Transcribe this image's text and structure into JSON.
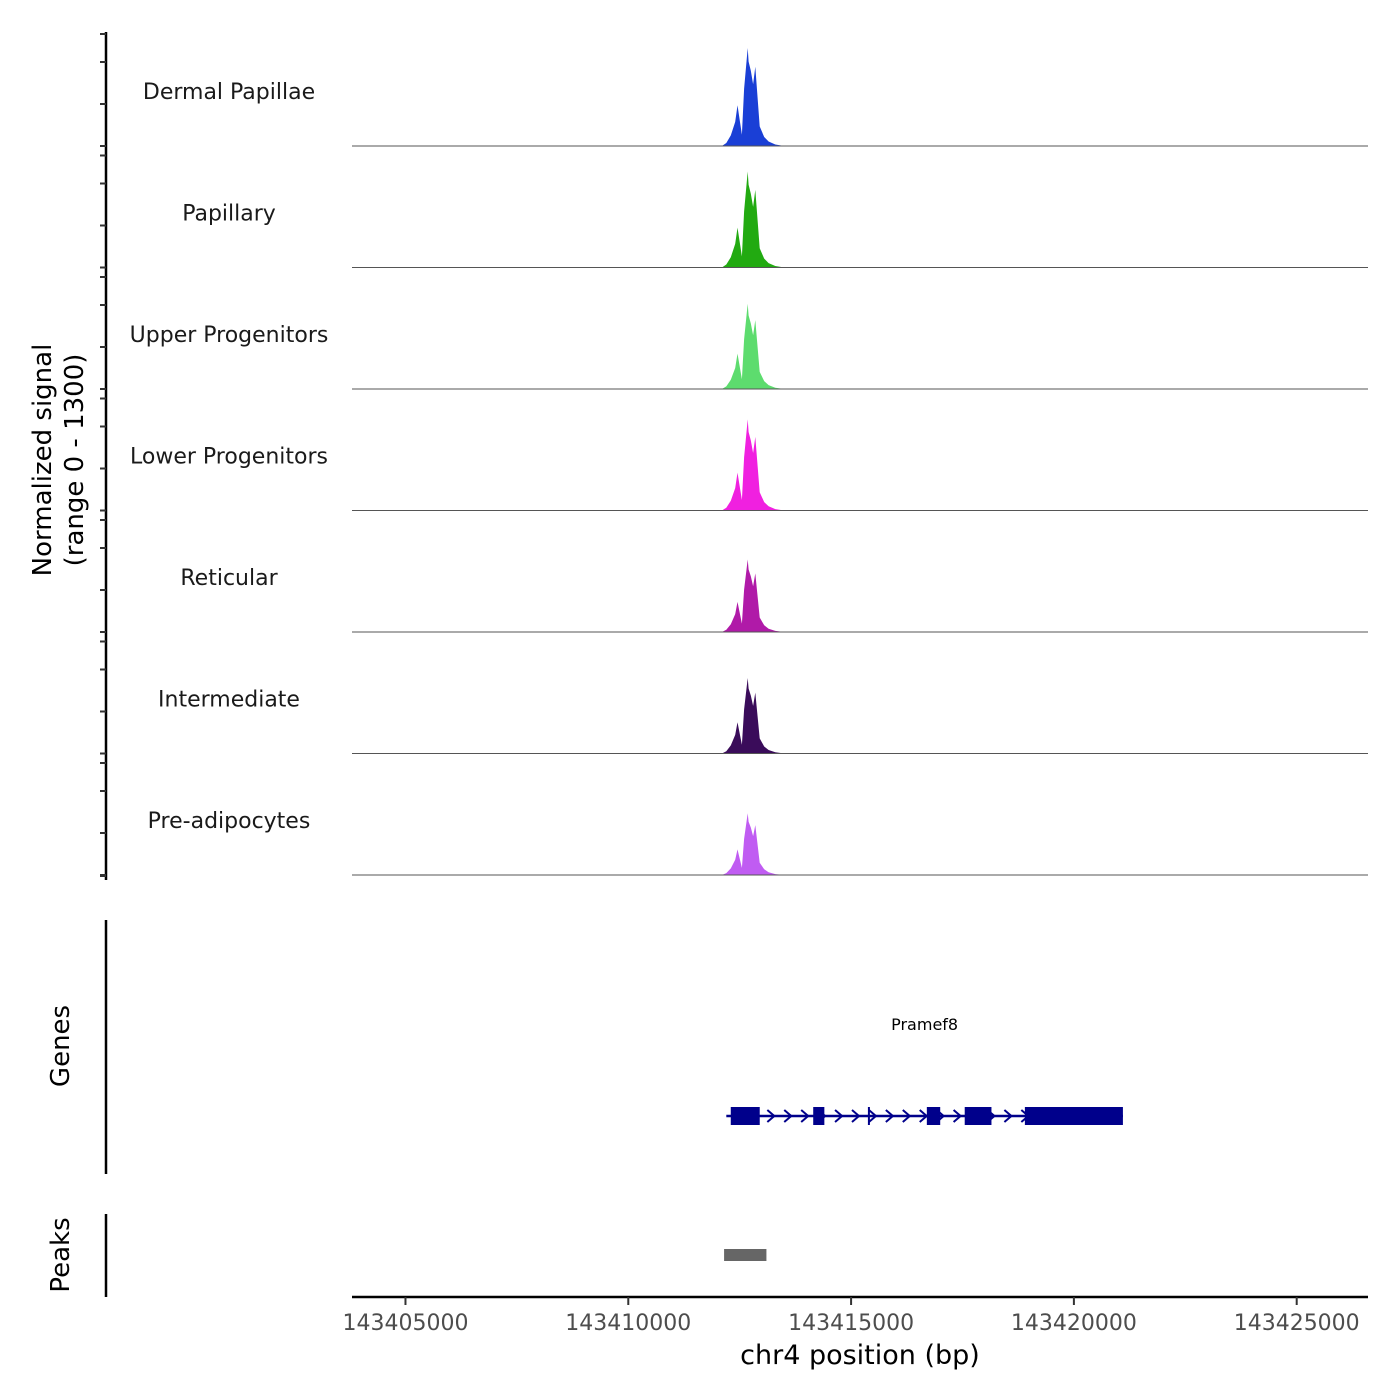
{
  "chart_data": {
    "type": "area",
    "title": "",
    "ylabel_line1": "Normalized signal",
    "ylabel_line2": "(range 0 - 1300)",
    "y_range": [
      0,
      1300
    ],
    "xlabel": "chr4 position (bp)",
    "x_range": [
      143403800,
      143426600
    ],
    "x_ticks": [
      143405000,
      143410000,
      143415000,
      143420000,
      143425000
    ],
    "x_tick_labels": [
      "143405000",
      "143410000",
      "143415000",
      "143420000",
      "143425000"
    ],
    "tracks": [
      {
        "name": "Dermal Papillae",
        "color": "#1a3fd6"
      },
      {
        "name": "Papillary",
        "color": "#22aa11"
      },
      {
        "name": "Upper Progenitors",
        "color": "#5ddc6e"
      },
      {
        "name": "Lower Progenitors",
        "color": "#f020e0"
      },
      {
        "name": "Reticular",
        "color": "#b01aa8"
      },
      {
        "name": "Intermediate",
        "color": "#3a0c5a"
      },
      {
        "name": "Pre-adipocytes",
        "color": "#c05cf2"
      }
    ],
    "peak_profile": {
      "x": [
        143412100,
        143412200,
        143412300,
        143412400,
        143412450,
        143412550,
        143412600,
        143412680,
        143412700,
        143412750,
        143412800,
        143412850,
        143412950,
        143413050,
        143413150,
        143413300,
        143413500
      ],
      "y": [
        0,
        40,
        140,
        320,
        540,
        150,
        760,
        1300,
        1120,
        1000,
        820,
        1050,
        260,
        120,
        60,
        20,
        0
      ]
    },
    "genes_track_label": "Genes",
    "gene": {
      "name": "Pramef8",
      "color": "#00008b",
      "start": 143412200,
      "end": 143421100,
      "exons": [
        [
          143412300,
          143412950
        ],
        [
          143414150,
          143414400
        ],
        [
          143416700,
          143417000
        ],
        [
          143417550,
          143418150
        ],
        [
          143418900,
          143421100
        ]
      ]
    },
    "peaks_track_label": "Peaks",
    "peaks": [
      {
        "start": 143412150,
        "end": 143413100,
        "color": "#666666"
      }
    ]
  }
}
